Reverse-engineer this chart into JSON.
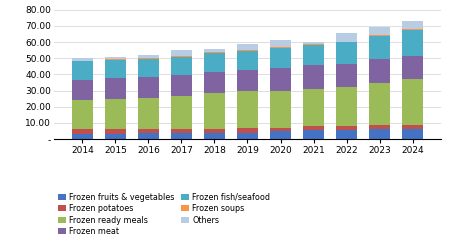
{
  "years": [
    2014,
    2015,
    2016,
    2017,
    2018,
    2019,
    2020,
    2021,
    2022,
    2023,
    2024
  ],
  "categories": [
    "Frozen fruits & vegetables",
    "Frozen potatoes",
    "Frozen ready meals",
    "Frozen meat",
    "Frozen fish/seafood",
    "Frozen soups",
    "Others"
  ],
  "colors": [
    "#4472C4",
    "#C0504D",
    "#9BBB59",
    "#8064A2",
    "#4BACC6",
    "#F79646",
    "#B8CCE4"
  ],
  "data": {
    "Frozen fruits & vegetables": [
      3.5,
      3.5,
      3.6,
      3.7,
      3.8,
      4.0,
      5.0,
      5.5,
      5.8,
      6.0,
      6.5
    ],
    "Frozen potatoes": [
      2.5,
      2.5,
      2.6,
      2.7,
      2.8,
      3.0,
      2.0,
      2.5,
      2.5,
      2.5,
      2.5
    ],
    "Frozen ready meals": [
      18.5,
      19.0,
      19.5,
      20.0,
      22.0,
      23.0,
      23.0,
      23.0,
      24.0,
      26.5,
      28.0
    ],
    "Frozen meat": [
      12.0,
      12.5,
      12.5,
      13.0,
      13.0,
      13.0,
      14.0,
      14.5,
      14.0,
      14.5,
      14.5
    ],
    "Frozen fish/seafood": [
      11.5,
      11.5,
      11.5,
      11.5,
      11.5,
      11.5,
      12.5,
      12.5,
      13.5,
      14.5,
      16.0
    ],
    "Frozen soups": [
      0.5,
      0.5,
      0.5,
      0.5,
      0.5,
      0.5,
      0.5,
      0.5,
      0.5,
      0.5,
      0.5
    ],
    "Others": [
      1.5,
      1.5,
      2.0,
      3.5,
      2.0,
      4.0,
      4.0,
      1.5,
      5.0,
      5.0,
      5.0
    ]
  },
  "ylim": [
    0,
    80
  ],
  "yticks": [
    0,
    10,
    20,
    30,
    40,
    50,
    60,
    70,
    80
  ],
  "ytick_labels": [
    "-",
    "10.00",
    "20.00",
    "30.00",
    "40.00",
    "50.00",
    "60.00",
    "70.00",
    "80.00"
  ],
  "bar_width": 0.65,
  "figsize": [
    4.5,
    2.4
  ],
  "dpi": 100
}
